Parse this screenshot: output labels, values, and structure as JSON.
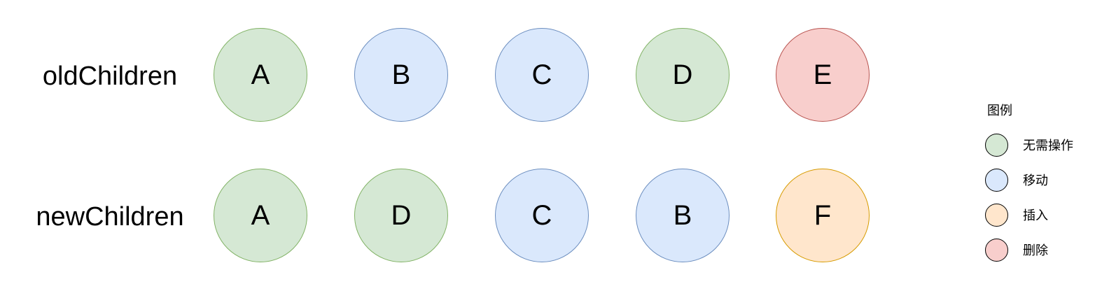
{
  "rows": {
    "old": {
      "label": "oldChildren",
      "nodes": [
        {
          "letter": "A",
          "state": "none"
        },
        {
          "letter": "B",
          "state": "move"
        },
        {
          "letter": "C",
          "state": "move"
        },
        {
          "letter": "D",
          "state": "none"
        },
        {
          "letter": "E",
          "state": "delete"
        }
      ]
    },
    "new": {
      "label": "newChildren",
      "nodes": [
        {
          "letter": "A",
          "state": "none"
        },
        {
          "letter": "D",
          "state": "none"
        },
        {
          "letter": "C",
          "state": "move"
        },
        {
          "letter": "B",
          "state": "move"
        },
        {
          "letter": "F",
          "state": "insert"
        }
      ]
    }
  },
  "legend": {
    "title": "图例",
    "items": [
      {
        "state": "none",
        "label": "无需操作",
        "fill": "#d5e8d4",
        "stroke": "#82b366"
      },
      {
        "state": "move",
        "label": "移动",
        "fill": "#dae8fc",
        "stroke": "#6c8ebf"
      },
      {
        "state": "insert",
        "label": "插入",
        "fill": "#ffe6cc",
        "stroke": "#d79b00"
      },
      {
        "state": "delete",
        "label": "删除",
        "fill": "#f8cecc",
        "stroke": "#b85450"
      }
    ]
  }
}
